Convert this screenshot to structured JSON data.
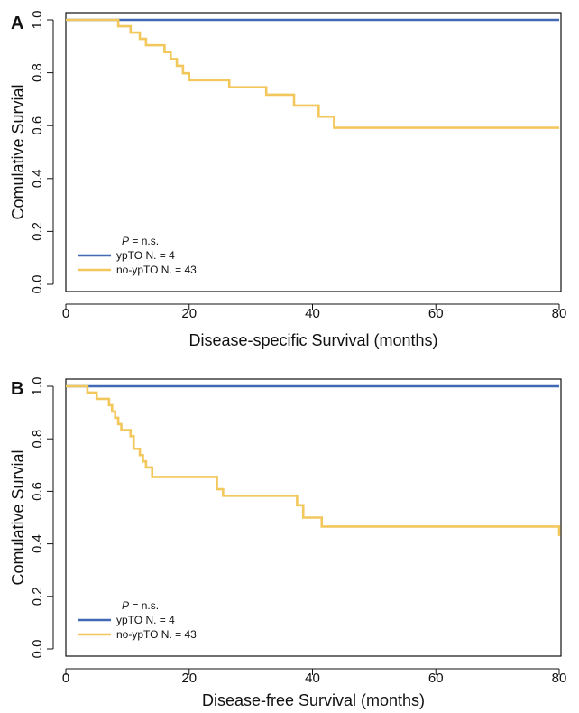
{
  "chart_data": [
    {
      "type": "line",
      "panel": "A",
      "xlabel": "Disease-specific Survival (months)",
      "ylabel": "Comulative Survial",
      "xlim": [
        0,
        80
      ],
      "ylim": [
        0,
        1
      ],
      "xticks": [
        "0",
        "20",
        "40",
        "60",
        "80"
      ],
      "yticks": [
        "0.0",
        "0.2",
        "0.4",
        "0.6",
        "0.8",
        "1.0"
      ],
      "legend": {
        "placement": "bottom-left",
        "p_label": "P",
        "p_text": " = n.s."
      },
      "series": [
        {
          "name": "ypTO N. = 4",
          "color": "#4169b5",
          "step": true,
          "x": [
            0,
            80
          ],
          "y": [
            1.0,
            1.0
          ]
        },
        {
          "name": "no-ypTO N. = 43",
          "color": "#f2c75c",
          "step": true,
          "x": [
            0,
            8.5,
            10.5,
            12.0,
            13.0,
            16.0,
            17.0,
            18.0,
            19.0,
            20.0,
            26.5,
            32.5,
            37.0,
            41.0,
            43.5,
            80
          ],
          "y": [
            1.0,
            0.976,
            0.952,
            0.928,
            0.904,
            0.878,
            0.852,
            0.826,
            0.798,
            0.772,
            0.745,
            0.717,
            0.676,
            0.634,
            0.592,
            0.592
          ]
        }
      ]
    },
    {
      "type": "line",
      "panel": "B",
      "xlabel": "Disease-free Survival (months)",
      "ylabel": "Comulative Survial",
      "xlim": [
        0,
        80
      ],
      "ylim": [
        0,
        1
      ],
      "xticks": [
        "0",
        "20",
        "40",
        "60",
        "80"
      ],
      "yticks": [
        "0.0",
        "0.2",
        "0.4",
        "0.6",
        "0.8",
        "1.0"
      ],
      "legend": {
        "placement": "bottom-left",
        "p_label": "P",
        "p_text": " = n.s."
      },
      "series": [
        {
          "name": "ypTO N. = 4",
          "color": "#4169b5",
          "step": true,
          "x": [
            0,
            80
          ],
          "y": [
            1.0,
            1.0
          ]
        },
        {
          "name": "no-ypTO N. = 43",
          "color": "#f2c75c",
          "step": true,
          "x": [
            0,
            3.5,
            5.0,
            7.0,
            7.5,
            8.0,
            8.5,
            9.0,
            10.5,
            11.0,
            12.0,
            12.5,
            13.0,
            14.0,
            24.5,
            25.5,
            37.5,
            38.5,
            41.5,
            80
          ],
          "y": [
            1.0,
            0.976,
            0.952,
            0.928,
            0.904,
            0.88,
            0.856,
            0.833,
            0.81,
            0.762,
            0.738,
            0.714,
            0.691,
            0.655,
            0.608,
            0.583,
            0.547,
            0.5,
            0.466,
            0.43
          ]
        }
      ]
    }
  ]
}
